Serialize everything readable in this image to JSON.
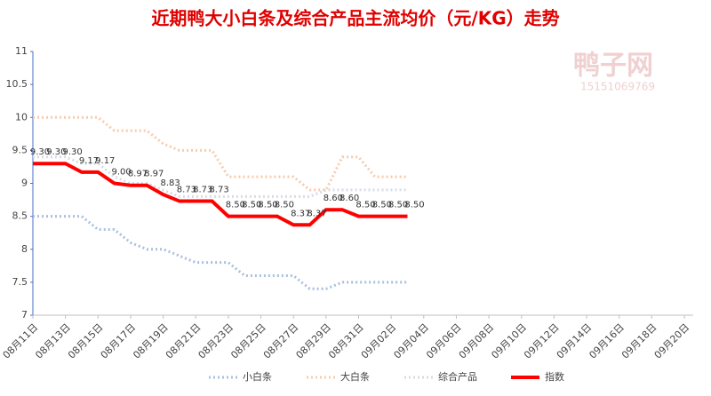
{
  "chart_data": {
    "type": "line",
    "title": "近期鸭大小白条及综合产品主流均价（元/KG）走势",
    "watermark": [
      "鸭子网",
      "15151069769"
    ],
    "categories": [
      "08月11日",
      null,
      "08月13日",
      null,
      "08月15日",
      null,
      "08月17日",
      null,
      "08月19日",
      null,
      "08月21日",
      null,
      "08月23日",
      null,
      "08月25日",
      null,
      "08月27日",
      null,
      "08月29日",
      null,
      "08月31日",
      null,
      "09月02日",
      null,
      "09月04日",
      null,
      "09月06日",
      null,
      "09月08日",
      null,
      "09月10日",
      null,
      "09月12日",
      null,
      "09月14日",
      null,
      "09月16日",
      null,
      "09月18日",
      null,
      "09月20日"
    ],
    "series": [
      {
        "name": "小白条",
        "color": "#a9c0e0",
        "style": "dotted",
        "values": [
          8.5,
          8.5,
          8.5,
          8.5,
          8.3,
          8.3,
          8.1,
          8.0,
          8.0,
          7.9,
          7.8,
          7.8,
          7.8,
          7.6,
          7.6,
          7.6,
          7.6,
          7.4,
          7.4,
          7.5,
          7.5,
          7.5,
          7.5,
          7.5,
          null,
          null,
          null,
          null,
          null,
          null,
          null,
          null,
          null,
          null,
          null,
          null,
          null,
          null,
          null,
          null,
          null
        ]
      },
      {
        "name": "大白条",
        "color": "#f8cbad",
        "style": "dotted",
        "values": [
          10.0,
          10.0,
          10.0,
          10.0,
          10.0,
          9.8,
          9.8,
          9.8,
          9.6,
          9.5,
          9.5,
          9.5,
          9.1,
          9.1,
          9.1,
          9.1,
          9.1,
          8.9,
          8.9,
          9.4,
          9.4,
          9.1,
          9.1,
          9.1,
          null,
          null,
          null,
          null,
          null,
          null,
          null,
          null,
          null,
          null,
          null,
          null,
          null,
          null,
          null,
          null,
          null
        ]
      },
      {
        "name": "综合产品",
        "color": "#d6dce5",
        "style": "dotted",
        "values": [
          9.4,
          9.4,
          9.4,
          9.3,
          9.3,
          9.1,
          9.0,
          9.0,
          8.9,
          8.8,
          8.8,
          8.8,
          8.8,
          8.8,
          8.8,
          8.8,
          8.8,
          8.8,
          8.9,
          8.9,
          8.9,
          8.9,
          8.9,
          8.9,
          null,
          null,
          null,
          null,
          null,
          null,
          null,
          null,
          null,
          null,
          null,
          null,
          null,
          null,
          null,
          null,
          null
        ]
      },
      {
        "name": "指数",
        "color": "#ff0000",
        "style": "solid",
        "values": [
          9.3,
          9.3,
          9.3,
          9.17,
          9.17,
          9.0,
          8.97,
          8.97,
          8.83,
          8.73,
          8.73,
          8.73,
          8.5,
          8.5,
          8.5,
          8.5,
          8.37,
          8.37,
          8.6,
          8.6,
          8.5,
          8.5,
          8.5,
          8.5,
          null,
          null,
          null,
          null,
          null,
          null,
          null,
          null,
          null,
          null,
          null,
          null,
          null,
          null,
          null,
          null,
          null
        ],
        "value_labels": [
          "9.30",
          "9.30",
          "9.30",
          "9.17",
          "9.17",
          "9.00",
          "8.97",
          "8.97",
          "8.83",
          "8.73",
          "8.73",
          "8.73",
          "8.50",
          "8.50",
          "8.50",
          "8.50",
          "8.37",
          "8.37",
          "8.60",
          "8.60",
          "8.50",
          "8.50",
          "8.50",
          "8.50",
          null,
          null,
          null,
          null,
          null,
          null,
          null,
          null,
          null,
          null,
          null,
          null,
          null,
          null,
          null,
          null,
          null
        ]
      }
    ],
    "ylim": [
      7,
      11
    ],
    "yticks": [
      7,
      7.5,
      8,
      8.5,
      9,
      9.5,
      10,
      10.5,
      11
    ],
    "grid": false,
    "legend": "bottom"
  }
}
